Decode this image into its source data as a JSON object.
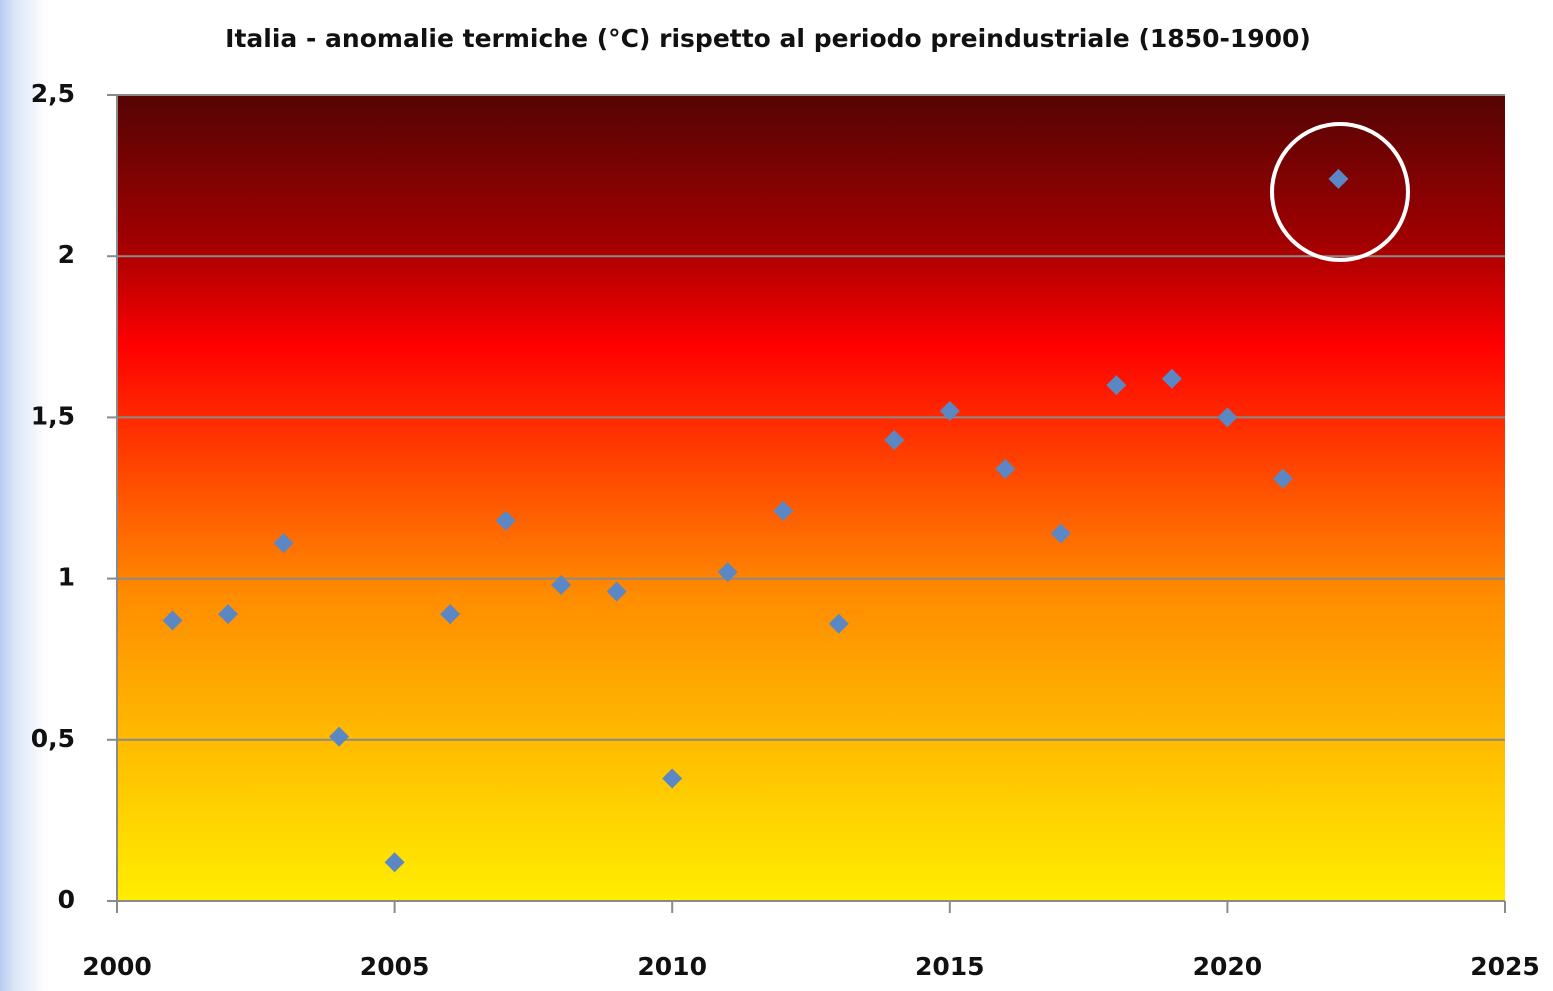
{
  "chart_data": {
    "type": "line",
    "title": "Italia - anomalie termiche (°C) rispetto al periodo preindustriale (1850-1900)",
    "x": [
      2001,
      2002,
      2003,
      2004,
      2005,
      2006,
      2007,
      2008,
      2009,
      2010,
      2011,
      2012,
      2013,
      2014,
      2015,
      2016,
      2017,
      2018,
      2019,
      2020,
      2021,
      2022
    ],
    "values": [
      0.87,
      0.89,
      1.11,
      0.51,
      0.12,
      0.89,
      1.18,
      0.98,
      0.96,
      0.38,
      1.02,
      1.21,
      0.86,
      1.43,
      1.52,
      1.34,
      1.14,
      1.6,
      1.62,
      1.5,
      1.31,
      2.24
    ],
    "color": "#5b87c4",
    "xlim": [
      2000,
      2025
    ],
    "xticks": [
      2000,
      2005,
      2010,
      2015,
      2020,
      2025
    ],
    "ylim": [
      0,
      2.5
    ],
    "yticks": [
      0,
      {
        "value": 0.5,
        "label": "0,5"
      },
      1,
      {
        "value": 1.5,
        "label": "1,5"
      },
      2,
      {
        "value": 2.5,
        "label": "2,5"
      }
    ],
    "grid": true
  }
}
